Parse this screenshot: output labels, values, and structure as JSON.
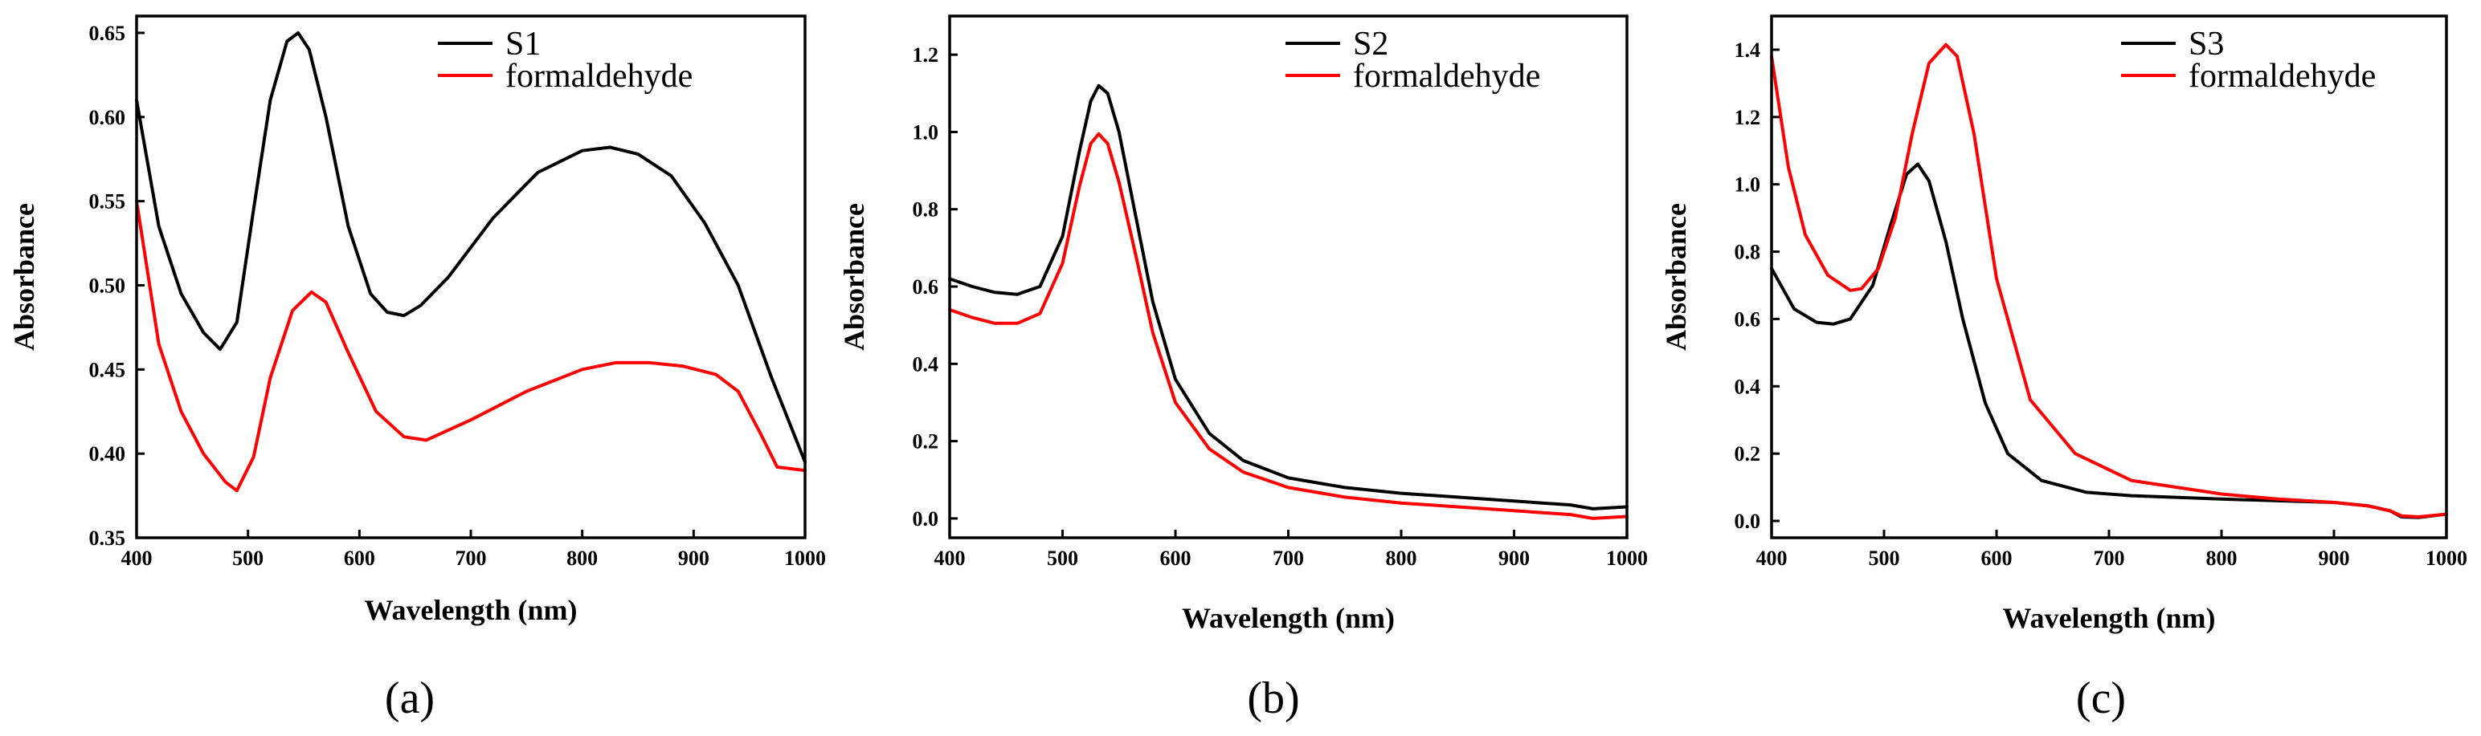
{
  "colors": {
    "black": "#000000",
    "red": "#ff0000"
  },
  "chart_data": [
    {
      "type": "line",
      "caption": "(a)",
      "xlabel": "Wavelength (nm)",
      "ylabel": "Absorbance",
      "xlim": [
        400,
        1000
      ],
      "ylim": [
        0.35,
        0.66
      ],
      "xticks": [
        400,
        500,
        600,
        700,
        800,
        900,
        1000
      ],
      "xtick_labels": [
        "400",
        "500",
        "600",
        "700",
        "800",
        "900",
        "1000"
      ],
      "yticks": [
        0.35,
        0.4,
        0.45,
        0.5,
        0.55,
        0.6,
        0.65
      ],
      "ytick_labels": [
        "0.35",
        "0.40",
        "0.45",
        "0.50",
        "0.55",
        "0.60",
        "0.65"
      ],
      "legend_position": "top-right",
      "series": [
        {
          "name": "S1",
          "color": "#000000",
          "x": [
            400,
            420,
            440,
            460,
            475,
            490,
            505,
            520,
            535,
            545,
            555,
            570,
            590,
            610,
            625,
            640,
            655,
            680,
            720,
            760,
            800,
            825,
            850,
            880,
            910,
            940,
            970,
            1000
          ],
          "y": [
            0.61,
            0.535,
            0.495,
            0.472,
            0.462,
            0.478,
            0.545,
            0.61,
            0.645,
            0.65,
            0.64,
            0.6,
            0.535,
            0.495,
            0.484,
            0.482,
            0.488,
            0.505,
            0.54,
            0.567,
            0.58,
            0.582,
            0.578,
            0.565,
            0.537,
            0.5,
            0.445,
            0.395
          ]
        },
        {
          "name": "formaldehyde",
          "color": "#ff0000",
          "x": [
            400,
            420,
            440,
            460,
            480,
            490,
            505,
            520,
            540,
            557,
            570,
            590,
            615,
            640,
            660,
            700,
            750,
            800,
            830,
            860,
            890,
            920,
            940,
            960,
            975,
            1000
          ],
          "y": [
            0.55,
            0.465,
            0.425,
            0.4,
            0.383,
            0.378,
            0.398,
            0.445,
            0.485,
            0.496,
            0.49,
            0.46,
            0.425,
            0.41,
            0.408,
            0.42,
            0.437,
            0.45,
            0.454,
            0.454,
            0.452,
            0.447,
            0.437,
            0.412,
            0.392,
            0.39
          ]
        }
      ]
    },
    {
      "type": "line",
      "caption": "(b)",
      "xlabel": "Wavelength (nm)",
      "ylabel": "Absorbance",
      "xlim": [
        400,
        1000
      ],
      "ylim": [
        -0.05,
        1.3
      ],
      "xticks": [
        400,
        500,
        600,
        700,
        800,
        900,
        1000
      ],
      "xtick_labels": [
        "400",
        "500",
        "600",
        "700",
        "800",
        "900",
        "1000"
      ],
      "yticks": [
        0.0,
        0.2,
        0.4,
        0.6,
        0.8,
        1.0,
        1.2
      ],
      "ytick_labels": [
        "0.0",
        "0.2",
        "0.4",
        "0.6",
        "0.8",
        "1.0",
        "1.2"
      ],
      "legend_position": "top-right",
      "series": [
        {
          "name": "S2",
          "color": "#000000",
          "x": [
            400,
            420,
            440,
            460,
            480,
            500,
            515,
            525,
            532,
            540,
            550,
            565,
            580,
            600,
            630,
            660,
            700,
            750,
            800,
            850,
            900,
            950,
            970,
            1000
          ],
          "y": [
            0.62,
            0.6,
            0.585,
            0.58,
            0.6,
            0.73,
            0.95,
            1.08,
            1.12,
            1.1,
            1.0,
            0.78,
            0.56,
            0.36,
            0.22,
            0.15,
            0.105,
            0.08,
            0.065,
            0.055,
            0.045,
            0.035,
            0.025,
            0.03
          ]
        },
        {
          "name": "formaldehyde",
          "color": "#ff0000",
          "x": [
            400,
            420,
            440,
            460,
            480,
            500,
            515,
            525,
            532,
            540,
            550,
            565,
            580,
            600,
            630,
            660,
            700,
            750,
            800,
            850,
            900,
            950,
            970,
            1000
          ],
          "y": [
            0.54,
            0.52,
            0.505,
            0.505,
            0.53,
            0.66,
            0.86,
            0.97,
            0.995,
            0.97,
            0.87,
            0.68,
            0.48,
            0.3,
            0.18,
            0.12,
            0.08,
            0.055,
            0.04,
            0.03,
            0.02,
            0.01,
            0.0,
            0.005
          ]
        }
      ]
    },
    {
      "type": "line",
      "caption": "(c)",
      "xlabel": "Wavelength (nm)",
      "ylabel": "Absorbance",
      "xlim": [
        400,
        1000
      ],
      "ylim": [
        -0.05,
        1.5
      ],
      "xticks": [
        400,
        500,
        600,
        700,
        800,
        900,
        1000
      ],
      "xtick_labels": [
        "400",
        "500",
        "600",
        "700",
        "800",
        "900",
        "1000"
      ],
      "yticks": [
        0.0,
        0.2,
        0.4,
        0.6,
        0.8,
        1.0,
        1.2,
        1.4
      ],
      "ytick_labels": [
        "0.0",
        "0.2",
        "0.4",
        "0.6",
        "0.8",
        "1.0",
        "1.2",
        "1.4"
      ],
      "legend_position": "top-right",
      "series": [
        {
          "name": "S3",
          "color": "#000000",
          "x": [
            400,
            420,
            440,
            455,
            470,
            490,
            505,
            520,
            530,
            540,
            555,
            570,
            590,
            610,
            640,
            680,
            720,
            800,
            850,
            900,
            930,
            950,
            960,
            975,
            1000
          ],
          "y": [
            0.75,
            0.63,
            0.59,
            0.585,
            0.6,
            0.7,
            0.87,
            1.03,
            1.06,
            1.01,
            0.83,
            0.6,
            0.35,
            0.2,
            0.12,
            0.085,
            0.075,
            0.065,
            0.06,
            0.055,
            0.045,
            0.03,
            0.012,
            0.01,
            0.02
          ]
        },
        {
          "name": "formaldehyde",
          "color": "#ff0000",
          "x": [
            400,
            415,
            430,
            450,
            470,
            480,
            495,
            510,
            525,
            540,
            555,
            565,
            580,
            600,
            630,
            670,
            720,
            800,
            850,
            900,
            930,
            950,
            960,
            975,
            1000
          ],
          "y": [
            1.38,
            1.05,
            0.85,
            0.73,
            0.685,
            0.69,
            0.75,
            0.9,
            1.15,
            1.36,
            1.415,
            1.38,
            1.15,
            0.72,
            0.36,
            0.2,
            0.12,
            0.08,
            0.065,
            0.055,
            0.045,
            0.03,
            0.015,
            0.012,
            0.02
          ]
        }
      ]
    }
  ]
}
